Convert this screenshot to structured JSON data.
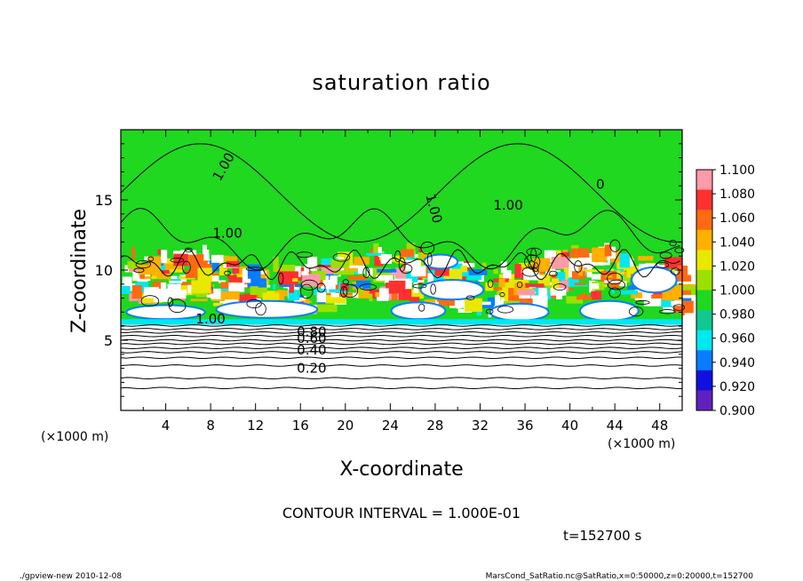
{
  "chart_data": {
    "type": "heatmap",
    "title": "saturation ratio",
    "xlabel": "X-coordinate",
    "ylabel": "Z-coordinate",
    "x_unit": "(×1000 m)",
    "z_unit": "(×1000 m)",
    "xlim": [
      0,
      50
    ],
    "zlim": [
      0,
      20
    ],
    "x_ticks": [
      "4",
      "8",
      "12",
      "16",
      "20",
      "24",
      "28",
      "32",
      "36",
      "40",
      "44",
      "48"
    ],
    "z_ticks": [
      "5",
      "10",
      "15"
    ],
    "colorbar": {
      "levels": [
        "1.100",
        "1.080",
        "1.060",
        "1.040",
        "1.020",
        "1.000",
        "0.980",
        "0.960",
        "0.940",
        "0.920",
        "0.900"
      ],
      "colors": [
        "#ff9aa8",
        "#ff3030",
        "#ff6a10",
        "#ffb000",
        "#e8e800",
        "#9be000",
        "#1fd81f",
        "#10c890",
        "#00e8f0",
        "#0a7cff",
        "#1010e0",
        "#6020c0"
      ]
    },
    "contour_labels": [
      {
        "text": "1.00",
        "x": 9.5,
        "z": 17.2,
        "rot": -60
      },
      {
        "text": "1.00",
        "x": 9.5,
        "z": 12.3,
        "rot": 0
      },
      {
        "text": "1.00",
        "x": 27.5,
        "z": 14.3,
        "rot": 75
      },
      {
        "text": "1.00",
        "x": 34.5,
        "z": 14.3,
        "rot": 0
      },
      {
        "text": "0",
        "x": 42.7,
        "z": 15.8,
        "rot": 0
      },
      {
        "text": "1.00",
        "x": 8.0,
        "z": 6.2,
        "rot": 0
      },
      {
        "text": "0.80",
        "x": 17.0,
        "z": 5.3,
        "rot": 0
      },
      {
        "text": "0.60",
        "x": 17.0,
        "z": 4.8,
        "rot": 0
      },
      {
        "text": "0.40",
        "x": 17.0,
        "z": 4.0,
        "rot": 0
      },
      {
        "text": "0.20",
        "x": 17.0,
        "z": 2.7,
        "rot": 0
      }
    ],
    "contour_interval_text": "CONTOUR INTERVAL = 1.000E-01",
    "time_text": "t=152700 s"
  },
  "footer": {
    "left": "./gpview-new  2010-12-08",
    "right": "MarsCond_SatRatio.nc@SatRatio,x=0:50000,z=0:20000,t=152700"
  }
}
